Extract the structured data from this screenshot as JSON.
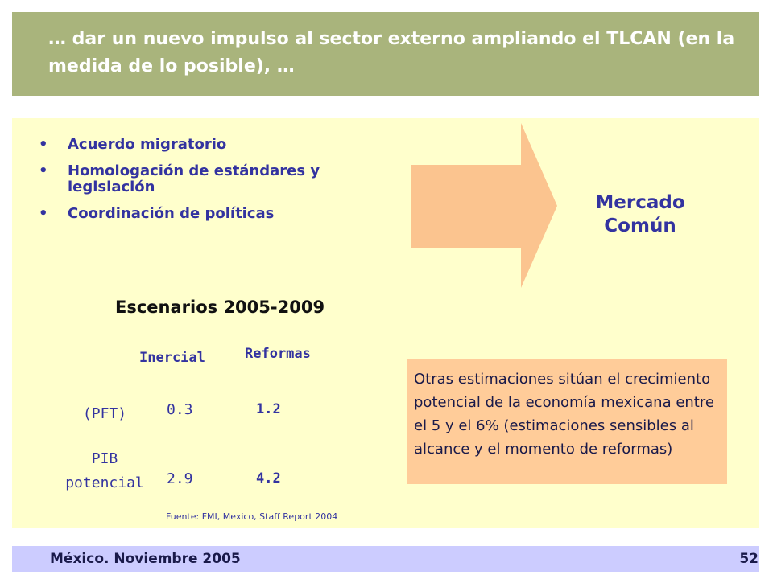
{
  "header": {
    "title": "… dar un nuevo impulso al sector externo ampliando el TLCAN (en la medida de lo posible), …"
  },
  "bullets": [
    "Acuerdo migratorio",
    "Homologación de estándares y legislación",
    "Coordinación de políticas"
  ],
  "arrow": {
    "line1": "Mercado",
    "line2": "Común"
  },
  "scenarios": {
    "title": "Escenarios 2005-2009",
    "columns": [
      "Inercial",
      "Reformas"
    ],
    "rows": [
      {
        "label": "(PFT)",
        "inercial": "0.3",
        "reformas": "1.2"
      },
      {
        "label_line1": "PIB",
        "label_line2": "potencial",
        "inercial": "2.9",
        "reformas": "4.2"
      }
    ],
    "source": "Fuente: FMI, Mexico, Staff Report 2004"
  },
  "note": {
    "text": "Otras estimaciones sitúan el crecimiento potencial de la economía mexicana entre el 5 y el 6% (estimaciones sensibles al alcance y el momento de reformas)"
  },
  "footer": {
    "left": "México. Noviembre 2005",
    "page": "52"
  },
  "colors": {
    "header_band": "#a9b47c",
    "panel": "#ffffcc",
    "arrow": "#fbc48f",
    "note_box": "#ffcc99",
    "footer_band": "#ccccff",
    "text_blue": "#3333a0"
  }
}
